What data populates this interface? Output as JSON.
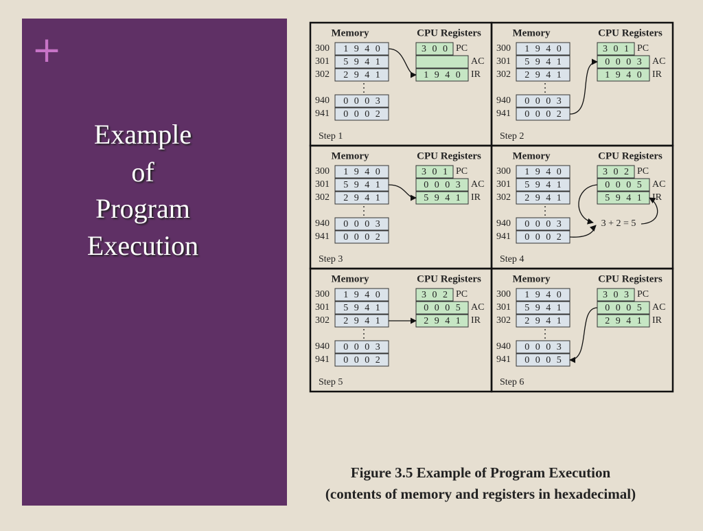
{
  "slide": {
    "marker": "+",
    "title": [
      "Example",
      "of",
      "Program",
      "Execution"
    ]
  },
  "figure": {
    "steps": [
      {
        "memory_header": "Memory",
        "registers_header": "CPU Registers",
        "memory": [
          {
            "address": "300",
            "contents": "1 9 4 0"
          },
          {
            "address": "301",
            "contents": "5 9 4 1"
          },
          {
            "address": "302",
            "contents": "2 9 4 1"
          },
          {
            "address": "940",
            "contents": "0 0 0 3"
          },
          {
            "address": "941",
            "contents": "0 0 0 2"
          }
        ],
        "registers": [
          {
            "name": "PC",
            "value": "3 0 0"
          },
          {
            "name": "AC",
            "value": null
          },
          {
            "name": "IR",
            "value": "1 9 4 0"
          }
        ],
        "label": "Step 1"
      },
      {
        "memory_header": "Memory",
        "registers_header": "CPU Registers",
        "memory": [
          {
            "address": "300",
            "contents": "1 9 4 0"
          },
          {
            "address": "301",
            "contents": "5 9 4 1"
          },
          {
            "address": "302",
            "contents": "2 9 4 1"
          },
          {
            "address": "940",
            "contents": "0 0 0 3"
          },
          {
            "address": "941",
            "contents": "0 0 0 2"
          }
        ],
        "registers": [
          {
            "name": "PC",
            "value": "3 0 1"
          },
          {
            "name": "AC",
            "value": "0 0 0 3"
          },
          {
            "name": "IR",
            "value": "1 9 4 0"
          }
        ],
        "label": "Step 2"
      },
      {
        "memory_header": "Memory",
        "registers_header": "CPU Registers",
        "memory": [
          {
            "address": "300",
            "contents": "1 9 4 0"
          },
          {
            "address": "301",
            "contents": "5 9 4 1"
          },
          {
            "address": "302",
            "contents": "2 9 4 1"
          },
          {
            "address": "940",
            "contents": "0 0 0 3"
          },
          {
            "address": "941",
            "contents": "0 0 0 2"
          }
        ],
        "registers": [
          {
            "name": "PC",
            "value": "3 0 1"
          },
          {
            "name": "AC",
            "value": "0 0 0 3"
          },
          {
            "name": "IR",
            "value": "5 9 4 1"
          }
        ],
        "label": "Step 3"
      },
      {
        "memory_header": "Memory",
        "registers_header": "CPU Registers",
        "memory": [
          {
            "address": "300",
            "contents": "1 9 4 0"
          },
          {
            "address": "301",
            "contents": "5 9 4 1"
          },
          {
            "address": "302",
            "contents": "2 9 4 1"
          },
          {
            "address": "940",
            "contents": "0 0 0 3"
          },
          {
            "address": "941",
            "contents": "0 0 0 2"
          }
        ],
        "registers": [
          {
            "name": "PC",
            "value": "3 0 2"
          },
          {
            "name": "AC",
            "value": "0 0 0 5"
          },
          {
            "name": "IR",
            "value": "5 9 4 1"
          }
        ],
        "label": "Step 4",
        "note": "3 + 2 = 5"
      },
      {
        "memory_header": "Memory",
        "registers_header": "CPU Registers",
        "memory": [
          {
            "address": "300",
            "contents": "1 9 4 0"
          },
          {
            "address": "301",
            "contents": "5 9 4 1"
          },
          {
            "address": "302",
            "contents": "2 9 4 1"
          },
          {
            "address": "940",
            "contents": "0 0 0 3"
          },
          {
            "address": "941",
            "contents": "0 0 0 2"
          }
        ],
        "registers": [
          {
            "name": "PC",
            "value": "3 0 2"
          },
          {
            "name": "AC",
            "value": "0 0 0 5"
          },
          {
            "name": "IR",
            "value": "2 9 4 1"
          }
        ],
        "label": "Step 5"
      },
      {
        "memory_header": "Memory",
        "registers_header": "CPU Registers",
        "memory": [
          {
            "address": "300",
            "contents": "1 9 4 0"
          },
          {
            "address": "301",
            "contents": "5 9 4 1"
          },
          {
            "address": "302",
            "contents": "2 9 4 1"
          },
          {
            "address": "940",
            "contents": "0 0 0 3"
          },
          {
            "address": "941",
            "contents": "0 0 0 5"
          }
        ],
        "registers": [
          {
            "name": "PC",
            "value": "3 0 3"
          },
          {
            "name": "AC",
            "value": "0 0 0 5"
          },
          {
            "name": "IR",
            "value": "2 9 4 1"
          }
        ],
        "label": "Step 6"
      }
    ],
    "caption": [
      "Figure 3.5 Example of Program Execution",
      "(contents of memory and registers in hexadecimal)"
    ]
  }
}
